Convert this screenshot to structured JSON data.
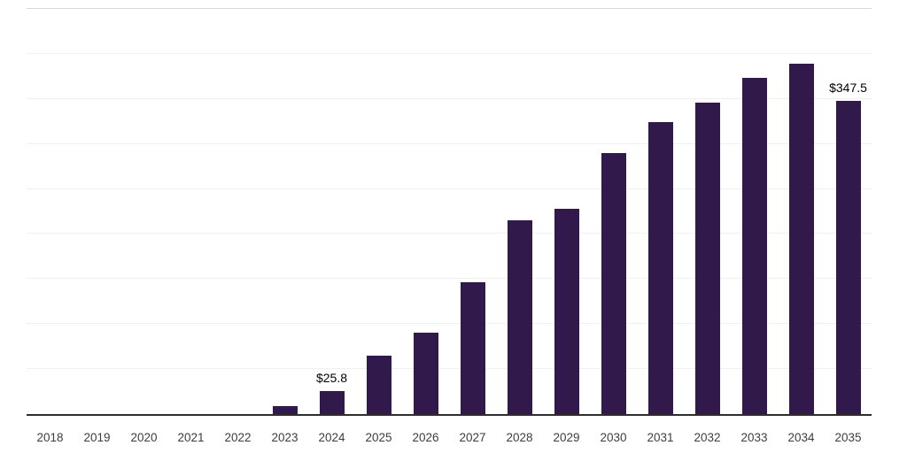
{
  "chart_data": {
    "type": "bar",
    "title": "",
    "xlabel": "",
    "ylabel": "",
    "categories": [
      "2018",
      "2019",
      "2020",
      "2021",
      "2022",
      "2023",
      "2024",
      "2025",
      "2026",
      "2027",
      "2028",
      "2029",
      "2030",
      "2031",
      "2032",
      "2033",
      "2034",
      "2035"
    ],
    "values": [
      0,
      0,
      0,
      0,
      0,
      9,
      25.8,
      65,
      90,
      146,
      215,
      228,
      290,
      324,
      346,
      373,
      389,
      347.5
    ],
    "annotations": [
      {
        "category": "2024",
        "text": "$25.8"
      },
      {
        "category": "2035",
        "text": "$347.5"
      }
    ],
    "ylim": [
      0,
      450
    ],
    "gridline_interval": 50,
    "grid": "horizontal-only",
    "legend": "none",
    "y_tick_labels_visible": false
  },
  "colors": {
    "bar": "#31194b",
    "gridline": "#f0f0f0",
    "top_gridline": "#d7d7d7",
    "axis": "#2e2e2e",
    "annotation_text": "#000000",
    "tick_text": "#3d3d3d",
    "background": "#ffffff"
  }
}
